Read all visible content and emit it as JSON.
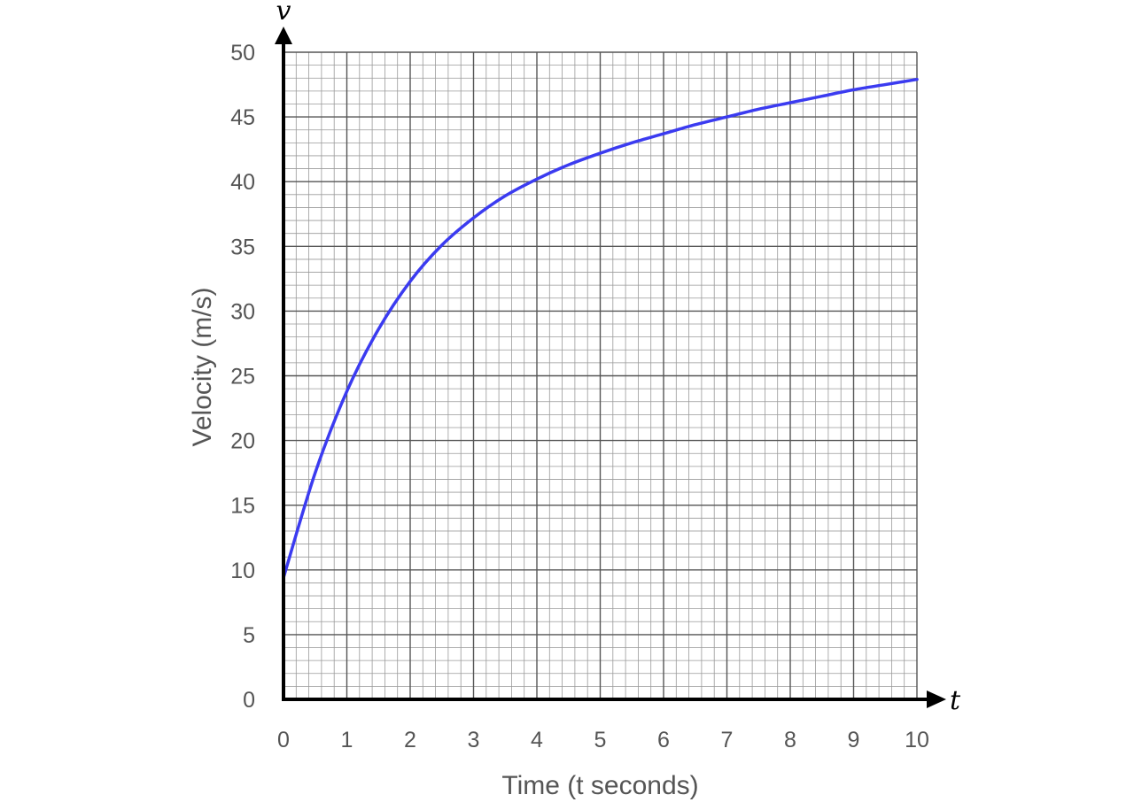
{
  "chart_data": {
    "type": "line",
    "xlabel": "Time (t seconds)",
    "ylabel": "Velocity (m/s)",
    "x_axis_variable": "t",
    "y_axis_variable": "v",
    "xlim": [
      0,
      10
    ],
    "ylim": [
      0,
      50
    ],
    "x_ticks": [
      "0",
      "1",
      "2",
      "3",
      "4",
      "5",
      "6",
      "7",
      "8",
      "9",
      "10"
    ],
    "y_ticks": [
      "0",
      "5",
      "10",
      "15",
      "20",
      "25",
      "30",
      "35",
      "40",
      "45",
      "50"
    ],
    "grid": {
      "major": true,
      "minor": true,
      "minor_per_major": 5
    },
    "series": [
      {
        "color": "#3b3bf0",
        "x": [
          0,
          0.5,
          1,
          1.5,
          2,
          2.5,
          3,
          3.5,
          4,
          4.5,
          5,
          5.5,
          6,
          6.5,
          7,
          7.5,
          8,
          8.5,
          9,
          9.5,
          10
        ],
        "y": [
          9.4,
          17.5,
          23.8,
          28.6,
          32.3,
          35.1,
          37.2,
          38.9,
          40.2,
          41.3,
          42.2,
          43.0,
          43.7,
          44.4,
          45.0,
          45.6,
          46.1,
          46.6,
          47.1,
          47.5,
          47.9
        ]
      }
    ],
    "colors": {
      "axis": "#000000",
      "grid_major": "#555555",
      "grid_minor": "#9a9a9a",
      "text": "#555555"
    }
  }
}
